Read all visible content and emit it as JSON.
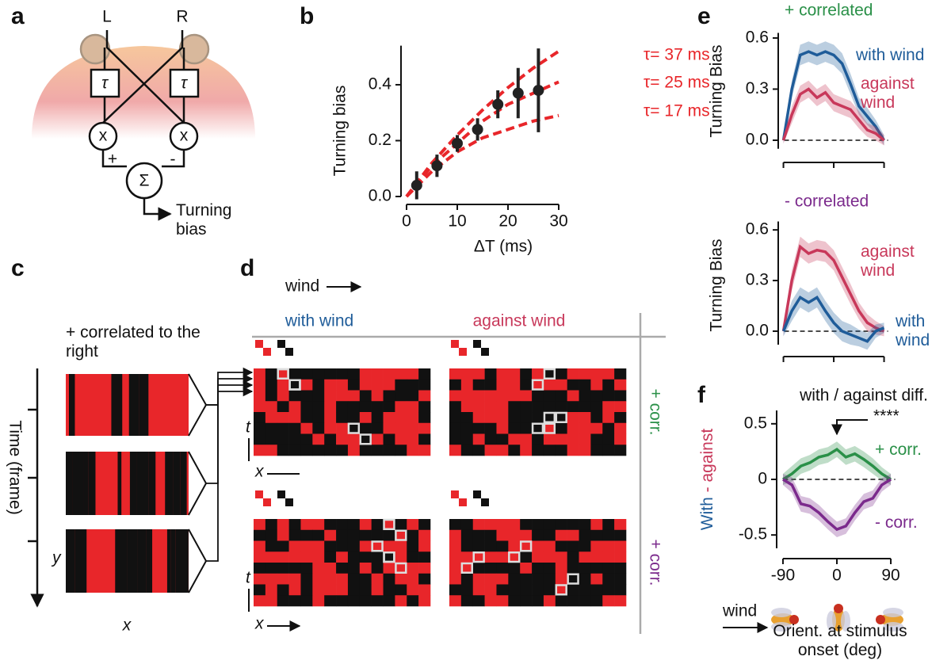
{
  "panel_labels": [
    "a",
    "b",
    "c",
    "d",
    "e",
    "f"
  ],
  "diagram_a": {
    "left": "L",
    "right": "R",
    "delay_left": "τ",
    "delay_right": "τ",
    "mult_left": "x",
    "mult_right": "x",
    "plus": "+",
    "minus": "-",
    "sum": "Σ",
    "output": "Turning bias"
  },
  "diagram_c": {
    "caption": "+ correlated to the right",
    "y_axis": "Time (frame)",
    "y": "y",
    "x": "x"
  },
  "diagram_d": {
    "wind": "wind",
    "col_with": "with wind",
    "col_against": "against wind",
    "row_top": "+ corr.",
    "row_bottom": "+ corr.",
    "t_top": "t",
    "x_top": "x",
    "t_bottom": "t",
    "x_bottom": "x"
  },
  "chart_data": [
    {
      "type": "scatter",
      "xlabel": "ΔT (ms)",
      "ylabel": "Turning bias",
      "x": [
        2,
        6,
        10,
        14,
        18,
        22,
        26
      ],
      "values": [
        0.04,
        0.11,
        0.19,
        0.24,
        0.33,
        0.37,
        0.38
      ],
      "errors": [
        0.05,
        0.04,
        0.03,
        0.04,
        0.05,
        0.09,
        0.15
      ],
      "color": "#222222",
      "xlim": [
        0,
        30
      ],
      "ylim": [
        0,
        0.54
      ],
      "xticks": [
        0,
        10,
        20,
        30
      ],
      "yticks": [
        {
          "value": 0,
          "label": "0.0"
        },
        0.2,
        0.4
      ],
      "series": [
        {
          "name": "τ= 37 ms",
          "color": "#e8262a",
          "x": [
            0,
            5,
            10,
            15,
            20,
            25,
            30
          ],
          "values": [
            0,
            0.12,
            0.22,
            0.31,
            0.39,
            0.46,
            0.52
          ]
        },
        {
          "name": "τ= 25 ms",
          "color": "#e8262a",
          "x": [
            0,
            5,
            10,
            15,
            20,
            25,
            30
          ],
          "values": [
            0,
            0.11,
            0.19,
            0.27,
            0.33,
            0.37,
            0.41
          ]
        },
        {
          "name": "τ= 17 ms",
          "color": "#e8262a",
          "x": [
            0,
            5,
            10,
            15,
            20,
            25,
            30
          ],
          "values": [
            0,
            0.09,
            0.16,
            0.21,
            0.24,
            0.27,
            0.29
          ]
        }
      ]
    },
    {
      "type": "line",
      "title": "+ correlated",
      "title_color": "#2a9048",
      "ylabel": "Turning Bias",
      "x": [
        -90,
        -75,
        -60,
        -45,
        -30,
        -15,
        0,
        15,
        30,
        45,
        60,
        75,
        90
      ],
      "xlim": [
        -100,
        100
      ],
      "ylim": [
        -0.05,
        0.63
      ],
      "xticks": [
        -90,
        0,
        90
      ],
      "yticks": [
        {
          "value": 0,
          "label": "0.0"
        },
        0.3,
        0.6
      ],
      "zero_line": true,
      "series": [
        {
          "name": "with wind",
          "color": "#1f5c99",
          "values": [
            0,
            0.3,
            0.5,
            0.52,
            0.5,
            0.52,
            0.5,
            0.45,
            0.33,
            0.2,
            0.14,
            0.08,
            0
          ],
          "errors": [
            0.02,
            0.05,
            0.06,
            0.06,
            0.06,
            0.06,
            0.06,
            0.06,
            0.06,
            0.05,
            0.05,
            0.04,
            0.03
          ]
        },
        {
          "name": "against wind",
          "color": "#c8385a",
          "values": [
            0,
            0.15,
            0.27,
            0.3,
            0.25,
            0.28,
            0.22,
            0.2,
            0.18,
            0.12,
            0.06,
            0.04,
            0
          ],
          "errors": [
            0.02,
            0.05,
            0.05,
            0.05,
            0.05,
            0.05,
            0.05,
            0.05,
            0.05,
            0.05,
            0.04,
            0.04,
            0.03
          ]
        }
      ]
    },
    {
      "type": "line",
      "title": "- correlated",
      "title_color": "#7b2a8c",
      "ylabel": "Turning Bias",
      "x": [
        -90,
        -75,
        -60,
        -45,
        -30,
        -15,
        0,
        15,
        30,
        45,
        60,
        75,
        90
      ],
      "xlim": [
        -100,
        100
      ],
      "ylim": [
        -0.08,
        0.65
      ],
      "xticks": [
        -90,
        0,
        90
      ],
      "yticks": [
        {
          "value": 0,
          "label": "0.0"
        },
        0.3,
        0.6
      ],
      "zero_line": true,
      "series": [
        {
          "name": "against wind",
          "color": "#c8385a",
          "values": [
            0,
            0.3,
            0.5,
            0.46,
            0.48,
            0.47,
            0.42,
            0.32,
            0.22,
            0.12,
            0.05,
            0.02,
            0
          ],
          "errors": [
            0.03,
            0.06,
            0.06,
            0.06,
            0.06,
            0.06,
            0.06,
            0.06,
            0.06,
            0.05,
            0.05,
            0.04,
            0.03
          ]
        },
        {
          "name": "with wind",
          "color": "#1f5c99",
          "values": [
            0,
            0.12,
            0.2,
            0.17,
            0.2,
            0.12,
            0.05,
            0,
            -0.02,
            -0.04,
            -0.06,
            0,
            0.02
          ],
          "errors": [
            0.03,
            0.06,
            0.06,
            0.06,
            0.06,
            0.06,
            0.06,
            0.06,
            0.06,
            0.05,
            0.05,
            0.04,
            0.03
          ]
        }
      ]
    },
    {
      "type": "line",
      "title": "with / against diff.",
      "annotation": "****",
      "ylabel": [
        "With",
        "- against"
      ],
      "ylabel_colors": [
        "#1f5c99",
        "#c8385a"
      ],
      "xlabel": "Orient. at stimulus onset (deg)",
      "wind_label": "wind",
      "x": [
        -90,
        -75,
        -60,
        -45,
        -30,
        -15,
        0,
        15,
        30,
        45,
        60,
        75,
        90
      ],
      "xlim": [
        -100,
        100
      ],
      "ylim": [
        -0.62,
        0.62
      ],
      "xticks": [
        -90,
        0,
        90
      ],
      "yticks": [
        0.5,
        0,
        -0.5
      ],
      "zero_line": true,
      "series": [
        {
          "name": "+ corr.",
          "color": "#2a9048",
          "values": [
            0,
            0.05,
            0.12,
            0.15,
            0.2,
            0.22,
            0.27,
            0.2,
            0.23,
            0.18,
            0.12,
            0.05,
            0
          ],
          "errors": [
            0.05,
            0.07,
            0.07,
            0.07,
            0.07,
            0.07,
            0.07,
            0.07,
            0.07,
            0.07,
            0.07,
            0.06,
            0.05
          ]
        },
        {
          "name": "- corr.",
          "color": "#7b2a8c",
          "values": [
            0,
            -0.05,
            -0.22,
            -0.24,
            -0.3,
            -0.38,
            -0.45,
            -0.42,
            -0.3,
            -0.2,
            -0.17,
            -0.05,
            0
          ],
          "errors": [
            0.05,
            0.07,
            0.07,
            0.07,
            0.07,
            0.07,
            0.07,
            0.07,
            0.07,
            0.07,
            0.07,
            0.06,
            0.05
          ]
        }
      ]
    }
  ]
}
